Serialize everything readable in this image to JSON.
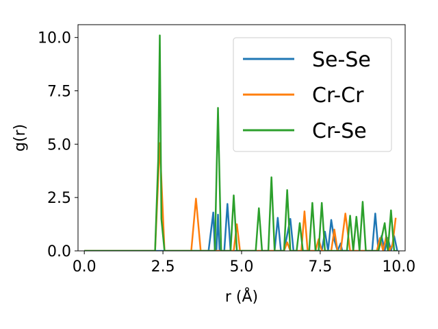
{
  "chart_data": {
    "type": "line",
    "xlabel": "r (Å)",
    "ylabel": "g(r)",
    "xlim": [
      -0.2,
      10.2
    ],
    "ylim": [
      0,
      10.6
    ],
    "xticks": [
      0.0,
      2.5,
      5.0,
      7.5,
      10.0
    ],
    "xtick_labels": [
      "0.0",
      "2.5",
      "5.0",
      "7.5",
      "10.0"
    ],
    "yticks": [
      0.0,
      2.5,
      5.0,
      7.5,
      10.0
    ],
    "ytick_labels": [
      "0.0",
      "2.5",
      "5.0",
      "7.5",
      "10.0"
    ],
    "grid": false,
    "legend_position": "top-right",
    "series": [
      {
        "name": "Se-Se",
        "color": "#1f77b4",
        "x": [
          0.0,
          3.95,
          4.1,
          4.15,
          4.2,
          4.25,
          4.3,
          4.45,
          4.55,
          4.65,
          6.05,
          6.15,
          6.25,
          6.35,
          6.55,
          6.65,
          6.75,
          7.55,
          7.65,
          7.75,
          7.85,
          7.95,
          8.05,
          8.15,
          8.2,
          9.15,
          9.25,
          9.35,
          9.45,
          9.55,
          9.65,
          9.75,
          9.85,
          9.95
        ],
        "y": [
          0.0,
          0.0,
          1.8,
          0.0,
          0.0,
          1.7,
          0.0,
          0.0,
          2.2,
          0.0,
          0.0,
          1.55,
          0.0,
          0.0,
          1.5,
          0.0,
          0.0,
          0.0,
          0.9,
          0.0,
          1.45,
          0.5,
          0.0,
          0.35,
          0.0,
          0.0,
          1.75,
          0.0,
          0.7,
          0.0,
          0.6,
          0.0,
          0.7,
          0.0
        ]
      },
      {
        "name": "Cr-Cr",
        "color": "#ff7f0e",
        "x": [
          0.0,
          2.25,
          2.4,
          2.55,
          3.4,
          3.55,
          3.7,
          3.75,
          4.75,
          4.85,
          4.95,
          5.0,
          6.35,
          6.45,
          6.55,
          6.6,
          6.9,
          7.0,
          7.1,
          7.2,
          7.35,
          7.45,
          7.55,
          7.85,
          7.95,
          8.05,
          8.15,
          8.3,
          8.45,
          8.9,
          9.3,
          9.4,
          9.5,
          9.6,
          9.7,
          9.8,
          9.9
        ],
        "y": [
          0.0,
          0.0,
          5.05,
          0.0,
          0.0,
          2.45,
          0.0,
          0.0,
          0.0,
          1.25,
          0.0,
          0.0,
          0.0,
          0.4,
          0.0,
          0.0,
          0.0,
          1.85,
          0.0,
          0.0,
          0.0,
          0.55,
          0.0,
          0.0,
          1.0,
          0.0,
          0.0,
          1.75,
          0.0,
          0.0,
          0.0,
          0.6,
          0.0,
          0.7,
          0.0,
          0.3,
          1.55
        ]
      },
      {
        "name": "Cr-Se",
        "color": "#2ca02c",
        "x": [
          0.0,
          2.25,
          2.35,
          2.4,
          2.45,
          2.55,
          4.05,
          4.15,
          4.25,
          4.35,
          4.65,
          4.75,
          4.85,
          5.45,
          5.55,
          5.65,
          5.85,
          5.95,
          6.05,
          6.35,
          6.45,
          6.55,
          6.75,
          6.85,
          6.95,
          7.15,
          7.25,
          7.35,
          7.45,
          7.55,
          7.65,
          7.75,
          8.35,
          8.45,
          8.55,
          8.65,
          8.75,
          8.85,
          8.95,
          9.35,
          9.45,
          9.55,
          9.65,
          9.75,
          9.85,
          9.95
        ],
        "y": [
          0.0,
          0.0,
          4.3,
          10.1,
          1.5,
          0.0,
          0.0,
          0.0,
          6.7,
          0.0,
          0.0,
          2.6,
          0.0,
          0.0,
          2.0,
          0.0,
          0.0,
          3.45,
          0.0,
          0.0,
          2.85,
          0.0,
          0.0,
          1.3,
          0.0,
          0.0,
          2.25,
          0.0,
          0.0,
          2.25,
          0.0,
          0.0,
          0.0,
          1.65,
          0.0,
          1.6,
          0.0,
          2.3,
          0.0,
          0.0,
          0.6,
          1.3,
          0.0,
          1.9,
          0.0,
          0.0
        ]
      }
    ]
  }
}
